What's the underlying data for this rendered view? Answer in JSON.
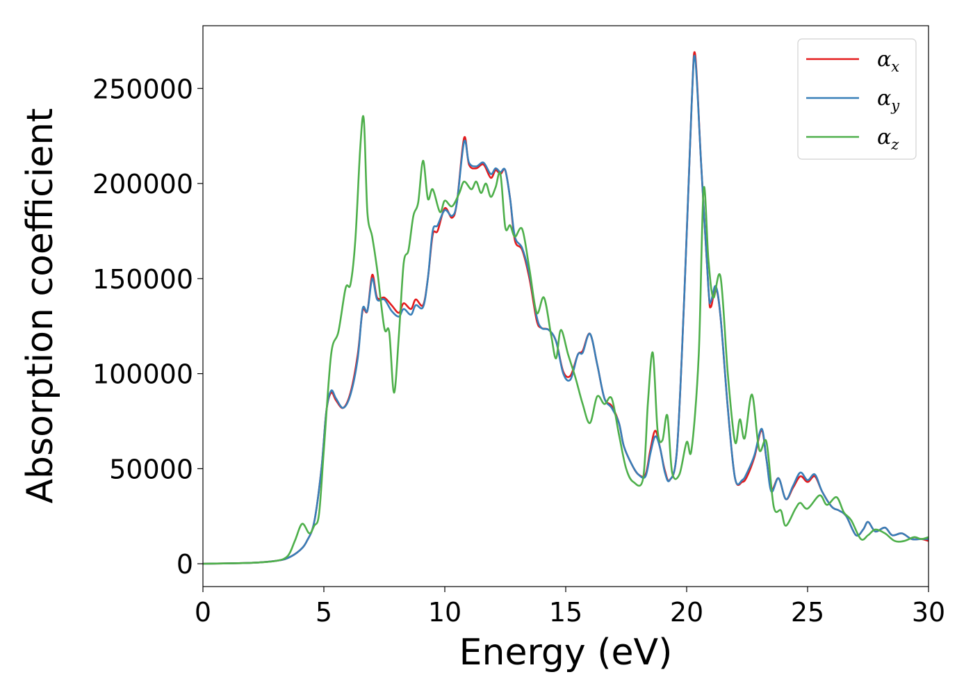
{
  "chart_data": {
    "type": "line",
    "title": "",
    "xlabel": "Energy (eV)",
    "ylabel": "Absorption coefficient",
    "xlim": [
      0,
      30
    ],
    "ylim": [
      -12000,
      283000
    ],
    "xticks": [
      "0",
      "5",
      "10",
      "15",
      "20",
      "25",
      "30"
    ],
    "yticks": [
      "0",
      "50000",
      "100000",
      "150000",
      "200000",
      "250000"
    ],
    "grid": false,
    "legend_position": "top-right",
    "series": [
      {
        "name": "x",
        "color": "#e41a1c",
        "points": [
          [
            0,
            0
          ],
          [
            2,
            500
          ],
          [
            3,
            1500
          ],
          [
            3.5,
            3000
          ],
          [
            4,
            7000
          ],
          [
            4.3,
            12000
          ],
          [
            4.6,
            22000
          ],
          [
            4.9,
            50000
          ],
          [
            5.1,
            80000
          ],
          [
            5.3,
            90000
          ],
          [
            5.5,
            86000
          ],
          [
            5.8,
            82000
          ],
          [
            6.1,
            90000
          ],
          [
            6.4,
            110000
          ],
          [
            6.6,
            133000
          ],
          [
            6.8,
            133000
          ],
          [
            7,
            152000
          ],
          [
            7.2,
            140000
          ],
          [
            7.5,
            140000
          ],
          [
            7.8,
            136000
          ],
          [
            8.1,
            132000
          ],
          [
            8.3,
            137000
          ],
          [
            8.6,
            134000
          ],
          [
            8.8,
            139000
          ],
          [
            9.1,
            136000
          ],
          [
            9.3,
            150000
          ],
          [
            9.5,
            173000
          ],
          [
            9.7,
            175000
          ],
          [
            10,
            187000
          ],
          [
            10.3,
            182000
          ],
          [
            10.5,
            190000
          ],
          [
            10.8,
            224000
          ],
          [
            11,
            210000
          ],
          [
            11.3,
            208000
          ],
          [
            11.6,
            210000
          ],
          [
            11.9,
            203000
          ],
          [
            12.1,
            207000
          ],
          [
            12.3,
            205000
          ],
          [
            12.5,
            207000
          ],
          [
            12.7,
            192000
          ],
          [
            12.9,
            170000
          ],
          [
            13.2,
            165000
          ],
          [
            13.5,
            150000
          ],
          [
            13.8,
            128000
          ],
          [
            14,
            124000
          ],
          [
            14.3,
            123000
          ],
          [
            14.6,
            117000
          ],
          [
            14.9,
            101000
          ],
          [
            15.2,
            99000
          ],
          [
            15.5,
            110000
          ],
          [
            15.7,
            112000
          ],
          [
            16,
            121000
          ],
          [
            16.3,
            105000
          ],
          [
            16.6,
            87000
          ],
          [
            16.9,
            83000
          ],
          [
            17.2,
            74000
          ],
          [
            17.4,
            62000
          ],
          [
            17.7,
            53000
          ],
          [
            18,
            47000
          ],
          [
            18.3,
            47000
          ],
          [
            18.5,
            60000
          ],
          [
            18.7,
            70000
          ],
          [
            18.9,
            61000
          ],
          [
            19.1,
            49000
          ],
          [
            19.3,
            44000
          ],
          [
            19.6,
            60000
          ],
          [
            19.9,
            140000
          ],
          [
            20.2,
            240000
          ],
          [
            20.35,
            268000
          ],
          [
            20.6,
            210000
          ],
          [
            20.9,
            145000
          ],
          [
            21,
            135000
          ],
          [
            21.2,
            145000
          ],
          [
            21.4,
            130000
          ],
          [
            21.7,
            82000
          ],
          [
            22,
            45000
          ],
          [
            22.3,
            43000
          ],
          [
            22.5,
            46000
          ],
          [
            22.8,
            56000
          ],
          [
            23.1,
            70000
          ],
          [
            23.3,
            55000
          ],
          [
            23.5,
            39000
          ],
          [
            23.8,
            45000
          ],
          [
            24.1,
            34000
          ],
          [
            24.4,
            40000
          ],
          [
            24.7,
            46000
          ],
          [
            25,
            43000
          ],
          [
            25.3,
            46000
          ],
          [
            25.6,
            38000
          ],
          [
            26,
            30000
          ],
          [
            26.3,
            28000
          ],
          [
            26.6,
            25000
          ],
          [
            27,
            15000
          ],
          [
            27.3,
            18000
          ],
          [
            27.5,
            22000
          ],
          [
            27.8,
            17000
          ],
          [
            28.2,
            19000
          ],
          [
            28.5,
            15000
          ],
          [
            28.9,
            16000
          ],
          [
            29.3,
            13000
          ],
          [
            29.7,
            13000
          ],
          [
            30,
            12000
          ]
        ]
      },
      {
        "name": "y",
        "color": "#377eb8",
        "points": [
          [
            0,
            0
          ],
          [
            2,
            500
          ],
          [
            3,
            1500
          ],
          [
            3.5,
            3000
          ],
          [
            4,
            7000
          ],
          [
            4.3,
            12000
          ],
          [
            4.6,
            22000
          ],
          [
            4.9,
            50000
          ],
          [
            5.1,
            80000
          ],
          [
            5.3,
            91000
          ],
          [
            5.5,
            87000
          ],
          [
            5.8,
            82000
          ],
          [
            6.1,
            89000
          ],
          [
            6.4,
            108000
          ],
          [
            6.6,
            134000
          ],
          [
            6.8,
            133000
          ],
          [
            7,
            150000
          ],
          [
            7.2,
            139000
          ],
          [
            7.5,
            139000
          ],
          [
            7.8,
            133000
          ],
          [
            8.1,
            130000
          ],
          [
            8.3,
            134000
          ],
          [
            8.6,
            131000
          ],
          [
            8.8,
            136000
          ],
          [
            9.1,
            135000
          ],
          [
            9.3,
            150000
          ],
          [
            9.5,
            175000
          ],
          [
            9.7,
            178000
          ],
          [
            10,
            186000
          ],
          [
            10.3,
            183000
          ],
          [
            10.5,
            190000
          ],
          [
            10.8,
            222000
          ],
          [
            11,
            211000
          ],
          [
            11.3,
            209000
          ],
          [
            11.6,
            211000
          ],
          [
            11.9,
            205000
          ],
          [
            12.1,
            208000
          ],
          [
            12.3,
            206000
          ],
          [
            12.5,
            207000
          ],
          [
            12.7,
            192000
          ],
          [
            12.9,
            172000
          ],
          [
            13.2,
            166000
          ],
          [
            13.5,
            152000
          ],
          [
            13.8,
            130000
          ],
          [
            14,
            124000
          ],
          [
            14.3,
            123000
          ],
          [
            14.6,
            117000
          ],
          [
            14.9,
            100000
          ],
          [
            15.2,
            97000
          ],
          [
            15.5,
            110000
          ],
          [
            15.7,
            111000
          ],
          [
            16,
            121000
          ],
          [
            16.3,
            105000
          ],
          [
            16.6,
            87000
          ],
          [
            16.9,
            82000
          ],
          [
            17.2,
            74000
          ],
          [
            17.4,
            62000
          ],
          [
            17.7,
            53000
          ],
          [
            18,
            47000
          ],
          [
            18.3,
            46000
          ],
          [
            18.5,
            58000
          ],
          [
            18.7,
            67000
          ],
          [
            18.9,
            61000
          ],
          [
            19.1,
            48000
          ],
          [
            19.3,
            44000
          ],
          [
            19.6,
            60000
          ],
          [
            19.9,
            140000
          ],
          [
            20.2,
            240000
          ],
          [
            20.35,
            266000
          ],
          [
            20.6,
            210000
          ],
          [
            20.9,
            145000
          ],
          [
            21,
            138000
          ],
          [
            21.2,
            146000
          ],
          [
            21.4,
            130000
          ],
          [
            21.7,
            82000
          ],
          [
            22,
            45000
          ],
          [
            22.3,
            44000
          ],
          [
            22.5,
            48000
          ],
          [
            22.8,
            57000
          ],
          [
            23.1,
            71000
          ],
          [
            23.3,
            55000
          ],
          [
            23.5,
            38000
          ],
          [
            23.8,
            45000
          ],
          [
            24.1,
            34000
          ],
          [
            24.4,
            41000
          ],
          [
            24.7,
            48000
          ],
          [
            25,
            44000
          ],
          [
            25.3,
            47000
          ],
          [
            25.6,
            38000
          ],
          [
            26,
            30000
          ],
          [
            26.3,
            28000
          ],
          [
            26.6,
            25000
          ],
          [
            27,
            15000
          ],
          [
            27.3,
            18000
          ],
          [
            27.5,
            22000
          ],
          [
            27.8,
            17000
          ],
          [
            28.2,
            19000
          ],
          [
            28.5,
            15000
          ],
          [
            28.9,
            16000
          ],
          [
            29.3,
            13000
          ],
          [
            29.7,
            13000
          ],
          [
            30,
            13000
          ]
        ]
      },
      {
        "name": "z",
        "color": "#4daf4a",
        "points": [
          [
            0,
            0
          ],
          [
            2,
            500
          ],
          [
            3,
            1500
          ],
          [
            3.5,
            4000
          ],
          [
            3.8,
            12000
          ],
          [
            4.1,
            21000
          ],
          [
            4.4,
            16000
          ],
          [
            4.6,
            20000
          ],
          [
            4.8,
            26000
          ],
          [
            5,
            60000
          ],
          [
            5.3,
            110000
          ],
          [
            5.6,
            122000
          ],
          [
            5.9,
            145000
          ],
          [
            6.1,
            147000
          ],
          [
            6.3,
            170000
          ],
          [
            6.5,
            218000
          ],
          [
            6.65,
            234000
          ],
          [
            6.8,
            185000
          ],
          [
            7,
            172000
          ],
          [
            7.2,
            155000
          ],
          [
            7.5,
            124000
          ],
          [
            7.7,
            122000
          ],
          [
            7.9,
            90000
          ],
          [
            8.1,
            120000
          ],
          [
            8.3,
            158000
          ],
          [
            8.5,
            165000
          ],
          [
            8.7,
            183000
          ],
          [
            8.9,
            190000
          ],
          [
            9.1,
            212000
          ],
          [
            9.3,
            192000
          ],
          [
            9.5,
            197000
          ],
          [
            9.8,
            185000
          ],
          [
            10,
            191000
          ],
          [
            10.3,
            188000
          ],
          [
            10.6,
            195000
          ],
          [
            10.8,
            201000
          ],
          [
            11.1,
            197000
          ],
          [
            11.3,
            201000
          ],
          [
            11.5,
            195000
          ],
          [
            11.7,
            200000
          ],
          [
            11.9,
            193000
          ],
          [
            12.1,
            198000
          ],
          [
            12.3,
            205000
          ],
          [
            12.5,
            177000
          ],
          [
            12.7,
            178000
          ],
          [
            12.9,
            172000
          ],
          [
            13.2,
            176000
          ],
          [
            13.5,
            155000
          ],
          [
            13.8,
            132000
          ],
          [
            14.1,
            140000
          ],
          [
            14.4,
            120000
          ],
          [
            14.6,
            108000
          ],
          [
            14.8,
            123000
          ],
          [
            15.1,
            110000
          ],
          [
            15.4,
            98000
          ],
          [
            15.7,
            84000
          ],
          [
            16,
            74000
          ],
          [
            16.3,
            88000
          ],
          [
            16.6,
            84000
          ],
          [
            16.9,
            87000
          ],
          [
            17.2,
            68000
          ],
          [
            17.5,
            50000
          ],
          [
            17.8,
            43000
          ],
          [
            18.2,
            45000
          ],
          [
            18.4,
            85000
          ],
          [
            18.6,
            111000
          ],
          [
            18.8,
            70000
          ],
          [
            19,
            65000
          ],
          [
            19.2,
            78000
          ],
          [
            19.4,
            48000
          ],
          [
            19.7,
            47000
          ],
          [
            20,
            64000
          ],
          [
            20.2,
            60000
          ],
          [
            20.5,
            110000
          ],
          [
            20.7,
            197000
          ],
          [
            20.9,
            160000
          ],
          [
            21.1,
            140000
          ],
          [
            21.4,
            151000
          ],
          [
            21.7,
            100000
          ],
          [
            22,
            64000
          ],
          [
            22.2,
            76000
          ],
          [
            22.4,
            66000
          ],
          [
            22.7,
            89000
          ],
          [
            23,
            60000
          ],
          [
            23.3,
            64000
          ],
          [
            23.6,
            30000
          ],
          [
            23.9,
            28000
          ],
          [
            24.1,
            20000
          ],
          [
            24.5,
            29000
          ],
          [
            24.7,
            32000
          ],
          [
            25,
            29000
          ],
          [
            25.5,
            36000
          ],
          [
            25.8,
            31000
          ],
          [
            26.2,
            35000
          ],
          [
            26.5,
            27000
          ],
          [
            26.8,
            23000
          ],
          [
            27.2,
            13000
          ],
          [
            27.5,
            15000
          ],
          [
            27.8,
            18000
          ],
          [
            28.2,
            16000
          ],
          [
            28.6,
            12000
          ],
          [
            29,
            12000
          ],
          [
            29.4,
            14000
          ],
          [
            29.7,
            13000
          ],
          [
            30,
            14000
          ]
        ]
      }
    ],
    "legend": {
      "symbol": "α",
      "subscripts": [
        "x",
        "y",
        "z"
      ]
    }
  }
}
